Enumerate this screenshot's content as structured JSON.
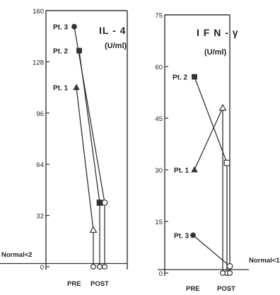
{
  "chart_data": [
    {
      "type": "line",
      "title": "IL - 4",
      "unit": "(U/ml)",
      "yticks": [
        "160",
        "128",
        "96",
        "64",
        "32",
        "0"
      ],
      "ylim": [
        0,
        160
      ],
      "x_labels": [
        "PRE",
        "POST"
      ],
      "normal_label": "Normal<2",
      "normal_value": 2,
      "series": [
        {
          "name": "Pt. 3",
          "pre": 150,
          "post_peak": 40,
          "post_final": 0,
          "pre_marker": "filled-circle",
          "peak_marker": "open-circle"
        },
        {
          "name": "Pt. 2",
          "pre": 135,
          "post_peak": 40,
          "post_final": 0,
          "pre_marker": "filled-square",
          "peak_marker": "filled-square"
        },
        {
          "name": "Pt. 1",
          "pre": 112,
          "post_peak": 23,
          "post_final": 0,
          "pre_marker": "filled-triangle",
          "peak_marker": "open-triangle"
        }
      ]
    },
    {
      "type": "line",
      "title": "I F N - γ",
      "unit": "(U/ml)",
      "yticks": [
        "75",
        "60",
        "45",
        "30",
        "15",
        "0"
      ],
      "ylim": [
        0,
        75
      ],
      "x_labels": [
        "PRE",
        "POST"
      ],
      "normal_label": "Normal<1",
      "normal_value": 1,
      "series": [
        {
          "name": "Pt. 2",
          "pre": 57,
          "post_peak": 32,
          "post_final": 0,
          "pre_marker": "filled-square",
          "peak_marker": "open-square"
        },
        {
          "name": "Pt. 1",
          "pre": 30,
          "post_peak": 48,
          "post_final": 0,
          "pre_marker": "filled-triangle",
          "peak_marker": "open-triangle"
        },
        {
          "name": "Pt. 3",
          "pre": 11,
          "post_peak": 2,
          "post_final": 0,
          "pre_marker": "filled-circle",
          "peak_marker": "open-circle"
        }
      ]
    }
  ]
}
